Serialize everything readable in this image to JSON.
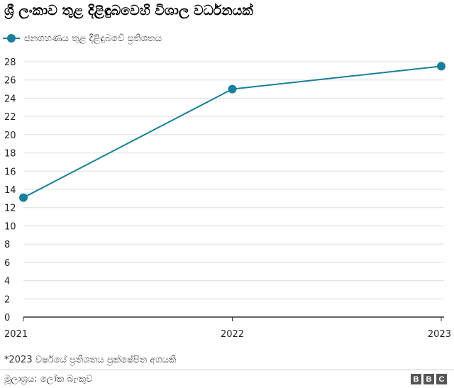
{
  "title": "ශ්‍රී ලංකාව තුළ දිළිඳුබවෙහි විශාල වර්ධනයක්",
  "legend": {
    "label": "ජනගහණය තුළ දිළිඳුබවේ ප්‍රතිශතය"
  },
  "footnote": "*2023 වර්ෂයේ ප්‍රතිශතය ප්‍රක්ෂේපිත අගයකි",
  "source": "මූලාශ්‍රය: ලෝක බැංකුව",
  "logo": {
    "letters": [
      "B",
      "B",
      "C"
    ]
  },
  "colors": {
    "series": "#1a7f9b",
    "axis": "#333333",
    "grid": "#dddddd",
    "text": "#222222"
  },
  "chart_data": {
    "type": "line",
    "title": "ශ්‍රී ලංකාව තුළ දිළිඳුබවෙහි විශාල වර්ධනයක්",
    "xlabel": "",
    "ylabel": "",
    "x": [
      "2021",
      "2022",
      "2023"
    ],
    "series": [
      {
        "name": "ජනගහණය තුළ දිළිඳුබවේ ප්‍රතිශතය",
        "values": [
          13.1,
          25.0,
          27.5
        ]
      }
    ],
    "ylim": [
      0,
      28
    ],
    "yticks": [
      "0",
      "2",
      "4",
      "6",
      "8",
      "10",
      "12",
      "14",
      "16",
      "18",
      "20",
      "22",
      "24",
      "26",
      "28"
    ],
    "grid": true,
    "legend_position": "top-left"
  }
}
